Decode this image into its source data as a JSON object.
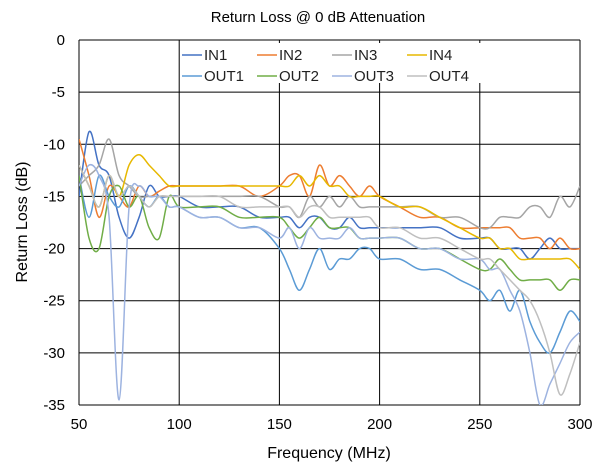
{
  "chart_data": {
    "type": "line",
    "title": "Return Loss @ 0 dB Attenuation",
    "xlabel": "Frequency (MHz)",
    "ylabel": "Return Loss (dB)",
    "xlim": [
      50,
      300
    ],
    "ylim": [
      -35,
      0
    ],
    "xticks": [
      50,
      100,
      150,
      200,
      250,
      300
    ],
    "yticks": [
      0,
      -5,
      -10,
      -15,
      -20,
      -25,
      -30,
      -35
    ],
    "grid": true,
    "legend": "top-center",
    "x": [
      50,
      55,
      60,
      65,
      70,
      75,
      80,
      85,
      90,
      95,
      100,
      110,
      120,
      130,
      140,
      150,
      155,
      160,
      165,
      170,
      175,
      180,
      185,
      190,
      195,
      200,
      210,
      220,
      230,
      240,
      250,
      255,
      260,
      265,
      270,
      275,
      280,
      285,
      290,
      295,
      300
    ],
    "series": [
      {
        "name": "IN1",
        "color": "#4472C4",
        "values": [
          -15,
          -8.8,
          -12,
          -13,
          -17,
          -19,
          -17,
          -14,
          -15,
          -15,
          -15,
          -16,
          -16,
          -16,
          -17,
          -17,
          -17,
          -18,
          -17,
          -17,
          -18,
          -18,
          -17,
          -18,
          -18,
          -18,
          -18,
          -18,
          -18,
          -19,
          -19,
          -19,
          -20,
          -20,
          -20,
          -21,
          -20,
          -19,
          -20,
          -20,
          -20
        ]
      },
      {
        "name": "IN2",
        "color": "#ED7D31",
        "values": [
          -9.5,
          -13,
          -17,
          -14,
          -15,
          -16,
          -14,
          -15,
          -14.5,
          -14,
          -14,
          -14,
          -14,
          -14,
          -15,
          -14,
          -13,
          -13,
          -15,
          -12,
          -14,
          -13,
          -14,
          -15,
          -14,
          -15,
          -16,
          -17,
          -17,
          -18,
          -18,
          -18,
          -18,
          -18,
          -19,
          -19,
          -19,
          -20,
          -19,
          -20,
          -20
        ]
      },
      {
        "name": "IN3",
        "color": "#A5A5A5",
        "values": [
          -14,
          -13,
          -12,
          -9.5,
          -13,
          -14,
          -15,
          -15,
          -15,
          -15,
          -15,
          -15,
          -15,
          -15,
          -15,
          -16,
          -16,
          -17,
          -15,
          -16,
          -15,
          -16,
          -15,
          -16,
          -16,
          -16,
          -16,
          -16,
          -17,
          -17,
          -18,
          -18,
          -17,
          -17,
          -17,
          -16,
          -16,
          -17,
          -15,
          -16,
          -14
        ]
      },
      {
        "name": "IN4",
        "color": "#E7B800",
        "values": [
          -12,
          -14,
          -16,
          -13,
          -15,
          -12,
          -11,
          -12,
          -13,
          -14,
          -14,
          -14,
          -14,
          -14,
          -14,
          -14,
          -14,
          -13,
          -14,
          -13,
          -14,
          -14,
          -15,
          -15,
          -15,
          -15,
          -16,
          -16,
          -17,
          -18,
          -19,
          -19,
          -20,
          -20,
          -21,
          -21,
          -21,
          -21,
          -21,
          -21,
          -22
        ]
      },
      {
        "name": "OUT1",
        "color": "#5B9BD5",
        "values": [
          -13,
          -17,
          -13,
          -15,
          -16,
          -14,
          -15,
          -16,
          -15,
          -16,
          -16,
          -17,
          -17,
          -18,
          -18,
          -20,
          -22,
          -24,
          -22,
          -20,
          -22,
          -21,
          -21,
          -20,
          -20,
          -21,
          -21,
          -22,
          -22,
          -23,
          -24,
          -25,
          -24,
          -26,
          -24,
          -27,
          -29,
          -30,
          -28,
          -26,
          -27
        ]
      },
      {
        "name": "OUT2",
        "color": "#70AD47",
        "values": [
          -13,
          -19,
          -20,
          -15,
          -14,
          -16,
          -15,
          -18,
          -19,
          -15,
          -16,
          -16,
          -16,
          -17,
          -17,
          -17,
          -18,
          -19,
          -18,
          -17,
          -18,
          -18,
          -18,
          -19,
          -19,
          -19,
          -19,
          -20,
          -20,
          -21,
          -22,
          -22,
          -21,
          -22,
          -23,
          -23,
          -23,
          -23,
          -24,
          -23,
          -23
        ]
      },
      {
        "name": "OUT3",
        "color": "#9DB3E0",
        "values": [
          -14,
          -12,
          -13,
          -17,
          -34.5,
          -16,
          -14,
          -15,
          -15,
          -16,
          -16,
          -17,
          -17,
          -18,
          -18,
          -19,
          -18,
          -20,
          -18,
          -19,
          -19,
          -19,
          -18,
          -19,
          -19,
          -19,
          -19,
          -20,
          -20,
          -21,
          -21,
          -22,
          -22,
          -24,
          -26,
          -30,
          -35,
          -33,
          -31,
          -29,
          -28
        ]
      },
      {
        "name": "OUT4",
        "color": "#BFBFBF",
        "values": [
          -12,
          -14,
          -16,
          -13,
          -15,
          -14,
          -15,
          -16,
          -15,
          -15,
          -15,
          -15,
          -15,
          -16,
          -16,
          -16,
          -16,
          -17,
          -16,
          -16,
          -17,
          -17,
          -17,
          -17,
          -17,
          -18,
          -18,
          -19,
          -19,
          -20,
          -21,
          -21,
          -22,
          -23,
          -24,
          -25,
          -27,
          -30,
          -34,
          -32,
          -29
        ]
      }
    ]
  }
}
